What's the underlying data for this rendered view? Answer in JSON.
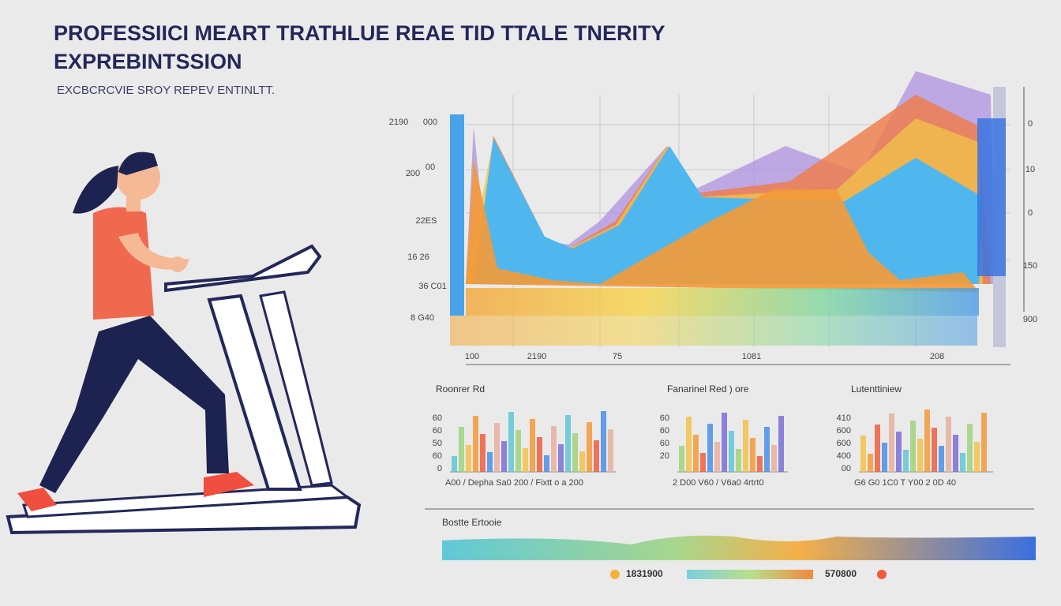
{
  "header": {
    "title_lines": [
      "PROFESSIICI MEART TRATHLUE REAE TID TTALE  TNERITY",
      "EXPREBINTSSION"
    ],
    "subtitle": "EXCBCRCVIE SROY REPEV ENTINLTT."
  },
  "main_chart": {
    "left_labels": [
      "2190",
      "000",
      "200",
      "00",
      "22ES",
      "16 26",
      "36 C01",
      "8 G40"
    ],
    "right_labels": [
      "0",
      "10",
      "0",
      "150",
      "900"
    ],
    "x_labels": [
      "100",
      "2190",
      "75",
      "1081",
      "208"
    ]
  },
  "small_charts": [
    {
      "title": "Roonrer Rd",
      "y_labels": [
        "60",
        "60",
        "50",
        "60",
        "0"
      ],
      "x_labels": "A00  / Depha  Sa0  200   / Fixtt o  a 200"
    },
    {
      "title": "Fanarinel Red ) ore",
      "y_labels": [
        "60",
        "60",
        "60",
        "20"
      ],
      "x_labels": "2 D00  V60    / V6a0  4rtrt0"
    },
    {
      "title": "Lutenttiniew",
      "y_labels": [
        "410",
        "600",
        "600",
        "400",
        "00"
      ],
      "x_labels": "G6 G0  1C0   T Y00  2 0D  40"
    }
  ],
  "bottom": {
    "label": "Bostte Ertooie",
    "left_value": "1831900",
    "right_value": "570800"
  }
}
